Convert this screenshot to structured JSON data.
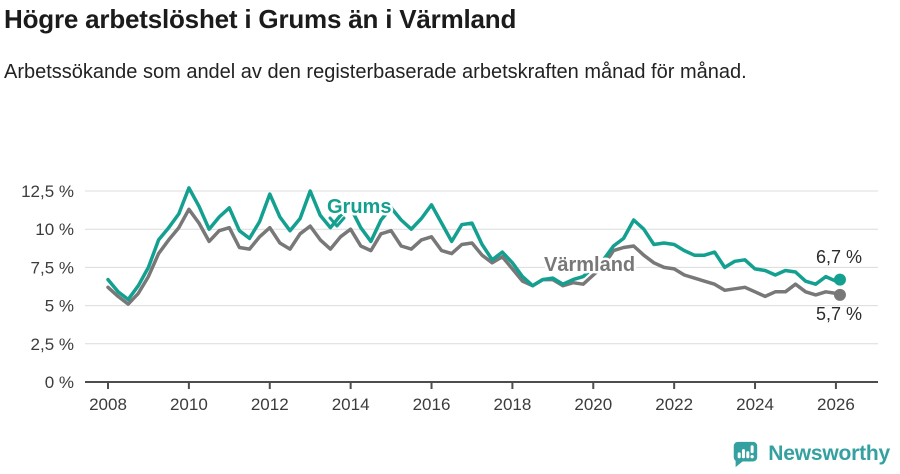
{
  "header": {
    "title": "Högre arbetslöshet i Grums än i Värmland",
    "subtitle": "Arbetssökande som andel av den registerbaserade arbetskraften månad för månad."
  },
  "chart_data": {
    "type": "line",
    "title": "Högre arbetslöshet i Grums än i Värmland",
    "ylabel": "Arbetssökande som andel av den registerbaserade arbetskraften (%)",
    "xlabel": "",
    "unit": "%",
    "grid": "horizontal",
    "legend_position": "inline-labels-on-lines",
    "x": [
      2008,
      2008.25,
      2008.5,
      2008.75,
      2009,
      2009.25,
      2009.5,
      2009.75,
      2010,
      2010.25,
      2010.5,
      2010.75,
      2011,
      2011.25,
      2011.5,
      2011.75,
      2012,
      2012.25,
      2012.5,
      2012.75,
      2013,
      2013.25,
      2013.5,
      2013.75,
      2014,
      2014.25,
      2014.5,
      2014.75,
      2015,
      2015.25,
      2015.5,
      2015.75,
      2016,
      2016.25,
      2016.5,
      2016.75,
      2017,
      2017.25,
      2017.5,
      2017.75,
      2018,
      2018.25,
      2018.5,
      2018.75,
      2019,
      2019.25,
      2019.5,
      2019.75,
      2020,
      2020.25,
      2020.5,
      2020.75,
      2021,
      2021.25,
      2021.5,
      2021.75,
      2022,
      2022.25,
      2022.5,
      2022.75,
      2023,
      2023.25,
      2023.5,
      2023.75,
      2024,
      2024.25,
      2024.5,
      2024.75,
      2025,
      2025.25,
      2025.5,
      2025.75,
      2026,
      2026.1
    ],
    "series": [
      {
        "name": "Grums",
        "color": "#14a090",
        "end_label": "6,7 %",
        "values": [
          6.7,
          5.9,
          5.4,
          6.3,
          7.5,
          9.3,
          10.1,
          11.0,
          12.7,
          11.5,
          10.0,
          10.8,
          11.4,
          9.9,
          9.4,
          10.5,
          12.3,
          10.8,
          9.9,
          10.7,
          12.5,
          10.9,
          10.1,
          10.9,
          11.4,
          10.1,
          9.2,
          10.6,
          11.4,
          10.6,
          10.0,
          10.7,
          11.6,
          10.4,
          9.2,
          10.3,
          10.4,
          9.0,
          8.0,
          8.5,
          7.8,
          6.9,
          6.3,
          6.7,
          6.8,
          6.4,
          6.7,
          6.9,
          7.5,
          8.0,
          8.9,
          9.4,
          10.6,
          10.0,
          9.0,
          9.1,
          9.0,
          8.6,
          8.3,
          8.3,
          8.5,
          7.5,
          7.9,
          8.0,
          7.4,
          7.3,
          7.0,
          7.3,
          7.2,
          6.6,
          6.4,
          6.9,
          6.6,
          6.7
        ]
      },
      {
        "name": "Värmland",
        "color": "#787878",
        "end_label": "5,7 %",
        "values": [
          6.2,
          5.6,
          5.1,
          5.8,
          6.9,
          8.4,
          9.3,
          10.1,
          11.3,
          10.4,
          9.2,
          9.9,
          10.1,
          8.8,
          8.7,
          9.5,
          10.1,
          9.1,
          8.7,
          9.7,
          10.2,
          9.3,
          8.7,
          9.5,
          10.0,
          8.9,
          8.6,
          9.7,
          9.9,
          8.9,
          8.7,
          9.3,
          9.5,
          8.6,
          8.4,
          9.0,
          9.1,
          8.3,
          7.8,
          8.2,
          7.4,
          6.6,
          6.3,
          6.7,
          6.7,
          6.3,
          6.5,
          6.4,
          7.0,
          7.6,
          8.6,
          8.8,
          8.9,
          8.3,
          7.8,
          7.5,
          7.4,
          7.0,
          6.8,
          6.6,
          6.4,
          6.0,
          6.1,
          6.2,
          5.9,
          5.6,
          5.9,
          5.9,
          6.4,
          5.9,
          5.7,
          5.9,
          5.8,
          5.7
        ]
      }
    ],
    "y_axis": {
      "range": [
        0,
        12.5
      ],
      "ticks": [
        0,
        2.5,
        5,
        7.5,
        10,
        12.5
      ],
      "tick_labels": [
        "0 %",
        "2,5 %",
        "5 %",
        "7,5 %",
        "10 %",
        "12,5 %"
      ]
    },
    "x_axis": {
      "range": [
        2008,
        2026.5
      ],
      "ticks": [
        2008,
        2010,
        2012,
        2014,
        2016,
        2018,
        2020,
        2022,
        2024,
        2026
      ],
      "tick_labels": [
        "2008",
        "2010",
        "2012",
        "2014",
        "2016",
        "2018",
        "2020",
        "2022",
        "2024",
        "2026"
      ]
    }
  },
  "footer": {
    "brand": "Newsworthy"
  },
  "colors": {
    "title_text": "#1b1b1b",
    "body_text": "#222222",
    "axis": "#4d4d4d",
    "gridline": "#dcdcdc",
    "tick_text": "#3c3c3c",
    "grums_teal": "#14a090",
    "varmland_gray": "#787878",
    "brand_teal": "#35a0a0"
  }
}
